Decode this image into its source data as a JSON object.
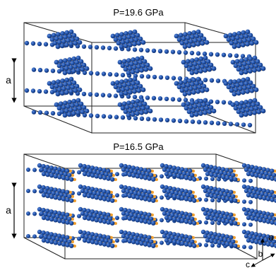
{
  "panels": [
    {
      "pressure_label": "P=19.6 GPa",
      "axis_label": "a"
    },
    {
      "pressure_label": "P=16.5 GPa",
      "axis_label": "a"
    }
  ],
  "axes_triad": {
    "a": "a",
    "b": "b",
    "c": "c"
  },
  "colors": {
    "atom": "#1f4fa3",
    "atom_dark": "#0f2f70",
    "bond": "#f0a030",
    "frame": "#222222"
  }
}
